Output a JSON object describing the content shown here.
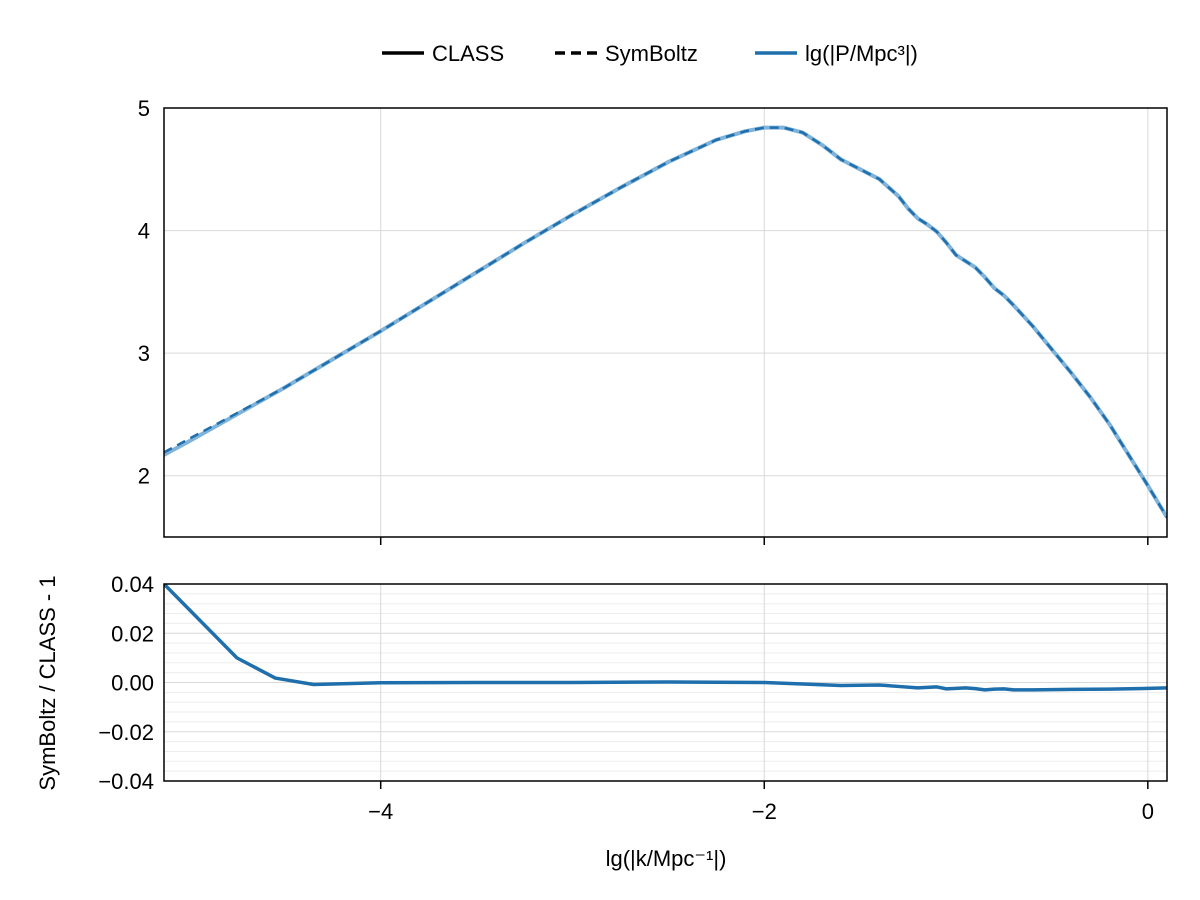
{
  "chart_data": [
    {
      "type": "line",
      "panel": "top",
      "legend": {
        "placement": "top-center",
        "entries": [
          {
            "label": "CLASS",
            "style": "solid",
            "color": "#000000"
          },
          {
            "label": "SymBoltz",
            "style": "dashed",
            "color": "#000000"
          },
          {
            "label": "lg(|P/Mpc³|)",
            "style": "solid",
            "color": "#1f6fad"
          }
        ]
      },
      "xlim": [
        -5.13,
        0.1
      ],
      "ylim": [
        1.5,
        5.0
      ],
      "xticks": [
        -4,
        -2,
        0
      ],
      "yticks": [
        2,
        3,
        4,
        5
      ],
      "ytick_labels": [
        "2",
        "3",
        "4",
        "5"
      ],
      "grid": true,
      "colors": {
        "class": "#7fb3da",
        "symboltz": "#1f6fad"
      },
      "series": [
        {
          "name": "CLASS",
          "x": [
            -5.13,
            -5.0,
            -4.75,
            -4.5,
            -4.25,
            -4.0,
            -3.75,
            -3.5,
            -3.25,
            -3.0,
            -2.75,
            -2.5,
            -2.25,
            -2.1,
            -2.0,
            -1.9,
            -1.8,
            -1.7,
            -1.6,
            -1.5,
            -1.4,
            -1.3,
            -1.25,
            -1.2,
            -1.15,
            -1.1,
            -1.05,
            -1.0,
            -0.95,
            -0.9,
            -0.85,
            -0.8,
            -0.75,
            -0.7,
            -0.6,
            -0.5,
            -0.4,
            -0.3,
            -0.2,
            -0.1,
            0.0,
            0.1
          ],
          "y": [
            2.17,
            2.28,
            2.5,
            2.72,
            2.95,
            3.18,
            3.42,
            3.66,
            3.9,
            4.13,
            4.35,
            4.56,
            4.74,
            4.81,
            4.84,
            4.84,
            4.8,
            4.7,
            4.58,
            4.5,
            4.42,
            4.28,
            4.18,
            4.1,
            4.05,
            3.99,
            3.9,
            3.8,
            3.75,
            3.7,
            3.62,
            3.53,
            3.47,
            3.39,
            3.22,
            3.03,
            2.84,
            2.64,
            2.42,
            2.17,
            1.92,
            1.66
          ]
        },
        {
          "name": "SymBoltz",
          "x": [
            -5.13,
            -5.0,
            -4.75,
            -4.5,
            -4.25,
            -4.0,
            -3.75,
            -3.5,
            -3.25,
            -3.0,
            -2.75,
            -2.5,
            -2.25,
            -2.1,
            -2.0,
            -1.9,
            -1.8,
            -1.7,
            -1.6,
            -1.5,
            -1.4,
            -1.3,
            -1.25,
            -1.2,
            -1.15,
            -1.1,
            -1.05,
            -1.0,
            -0.95,
            -0.9,
            -0.85,
            -0.8,
            -0.75,
            -0.7,
            -0.6,
            -0.5,
            -0.4,
            -0.3,
            -0.2,
            -0.1,
            0.0,
            0.1
          ],
          "y": [
            2.19,
            2.3,
            2.51,
            2.72,
            2.95,
            3.18,
            3.42,
            3.66,
            3.9,
            4.13,
            4.35,
            4.56,
            4.74,
            4.81,
            4.84,
            4.84,
            4.8,
            4.7,
            4.58,
            4.5,
            4.42,
            4.28,
            4.18,
            4.1,
            4.05,
            3.99,
            3.9,
            3.8,
            3.75,
            3.7,
            3.62,
            3.53,
            3.47,
            3.39,
            3.22,
            3.03,
            2.84,
            2.64,
            2.42,
            2.17,
            1.92,
            1.66
          ]
        }
      ]
    },
    {
      "type": "line",
      "panel": "bottom",
      "xlabel": "lg(|k/Mpc⁻¹|)",
      "ylabel": "SymBoltz / CLASS - 1",
      "xlim": [
        -5.13,
        0.1
      ],
      "ylim": [
        -0.04,
        0.04
      ],
      "xticks": [
        -4,
        -2,
        0
      ],
      "xtick_labels": [
        "−4",
        "−2",
        "0"
      ],
      "yticks": [
        0.04,
        0.02,
        0.0,
        -0.02,
        -0.04
      ],
      "ytick_labels": [
        "0.04",
        "0.02",
        "0.00",
        "−0.02",
        "−0.04"
      ],
      "grid": true,
      "color": "#1f6fad",
      "series": [
        {
          "x": [
            -5.13,
            -4.75,
            -4.55,
            -4.35,
            -4.2,
            -4.0,
            -3.5,
            -3.0,
            -2.5,
            -2.0,
            -1.8,
            -1.6,
            -1.4,
            -1.3,
            -1.2,
            -1.1,
            -1.05,
            -1.0,
            -0.95,
            -0.9,
            -0.85,
            -0.8,
            -0.75,
            -0.7,
            -0.6,
            -0.4,
            -0.2,
            0.0,
            0.1
          ],
          "y": [
            0.04,
            0.01,
            0.0018,
            -0.0008,
            -0.0005,
            -0.0001,
            0.0,
            0.0,
            0.0002,
            0.0,
            -0.0006,
            -0.0012,
            -0.001,
            -0.0016,
            -0.0022,
            -0.0018,
            -0.0026,
            -0.0024,
            -0.0022,
            -0.0025,
            -0.003,
            -0.0027,
            -0.0026,
            -0.003,
            -0.003,
            -0.0028,
            -0.0027,
            -0.0024,
            -0.0022
          ]
        }
      ]
    }
  ]
}
